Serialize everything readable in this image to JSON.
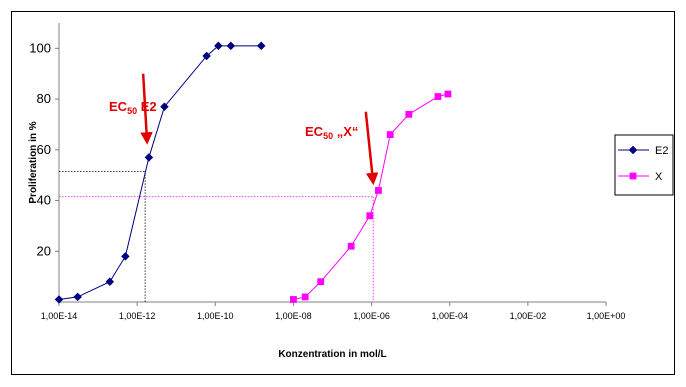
{
  "chart_data": {
    "type": "line",
    "title": "",
    "xlabel": "Konzentration in mol/L",
    "ylabel": "Proliferation in %",
    "xscale": "log",
    "xlim": [
      "1,00E-14",
      "1,00E+00"
    ],
    "ylim": [
      0,
      110
    ],
    "x_ticks": [
      "1,00E-14",
      "1,00E-12",
      "1,00E-10",
      "1,00E-08",
      "1,00E-06",
      "1,00E-04",
      "1,00E-02",
      "1,00E+00"
    ],
    "y_ticks": [
      "20",
      "40",
      "60",
      "80",
      "100"
    ],
    "grid": false,
    "legend_position": "right",
    "series": [
      {
        "name": "E2",
        "color": "#000080",
        "marker": "diamond",
        "x": [
          1e-14,
          3e-14,
          2e-13,
          5e-13,
          2e-12,
          5e-12,
          6e-11,
          1.2e-10,
          2.5e-10,
          1.5e-09
        ],
        "y": [
          1,
          2,
          8,
          18,
          57,
          77,
          97,
          101,
          101,
          101
        ]
      },
      {
        "name": "X",
        "color": "#ff00ff",
        "marker": "square",
        "x": [
          1e-08,
          2e-08,
          5e-08,
          3e-07,
          9e-07,
          1.5e-06,
          3e-06,
          9e-06,
          5e-05,
          9e-05
        ],
        "y": [
          1,
          2,
          8,
          22,
          34,
          44,
          66,
          74,
          81,
          82
        ]
      }
    ],
    "reference_lines": [
      {
        "series": "E2",
        "x": 1.6e-12,
        "y": 51.5,
        "color": "#000000",
        "style": "dotted"
      },
      {
        "series": "X",
        "x": 1.1e-06,
        "y": 41.5,
        "color": "#ff00ff",
        "style": "dotted"
      }
    ],
    "annotations": [
      {
        "id": "ec50-e2",
        "prefix": "EC",
        "sub": "50",
        "suffix": " E2",
        "color": "#e00000",
        "arrow_from": [
          1e-12,
          90
        ],
        "arrow_to": [
          1.8e-12,
          63
        ]
      },
      {
        "id": "ec50-x",
        "prefix": "EC",
        "sub": "50",
        "suffix": " „X“",
        "color": "#e00000",
        "arrow_from": [
          5e-07,
          75
        ],
        "arrow_to": [
          1.1e-06,
          47
        ]
      }
    ]
  }
}
